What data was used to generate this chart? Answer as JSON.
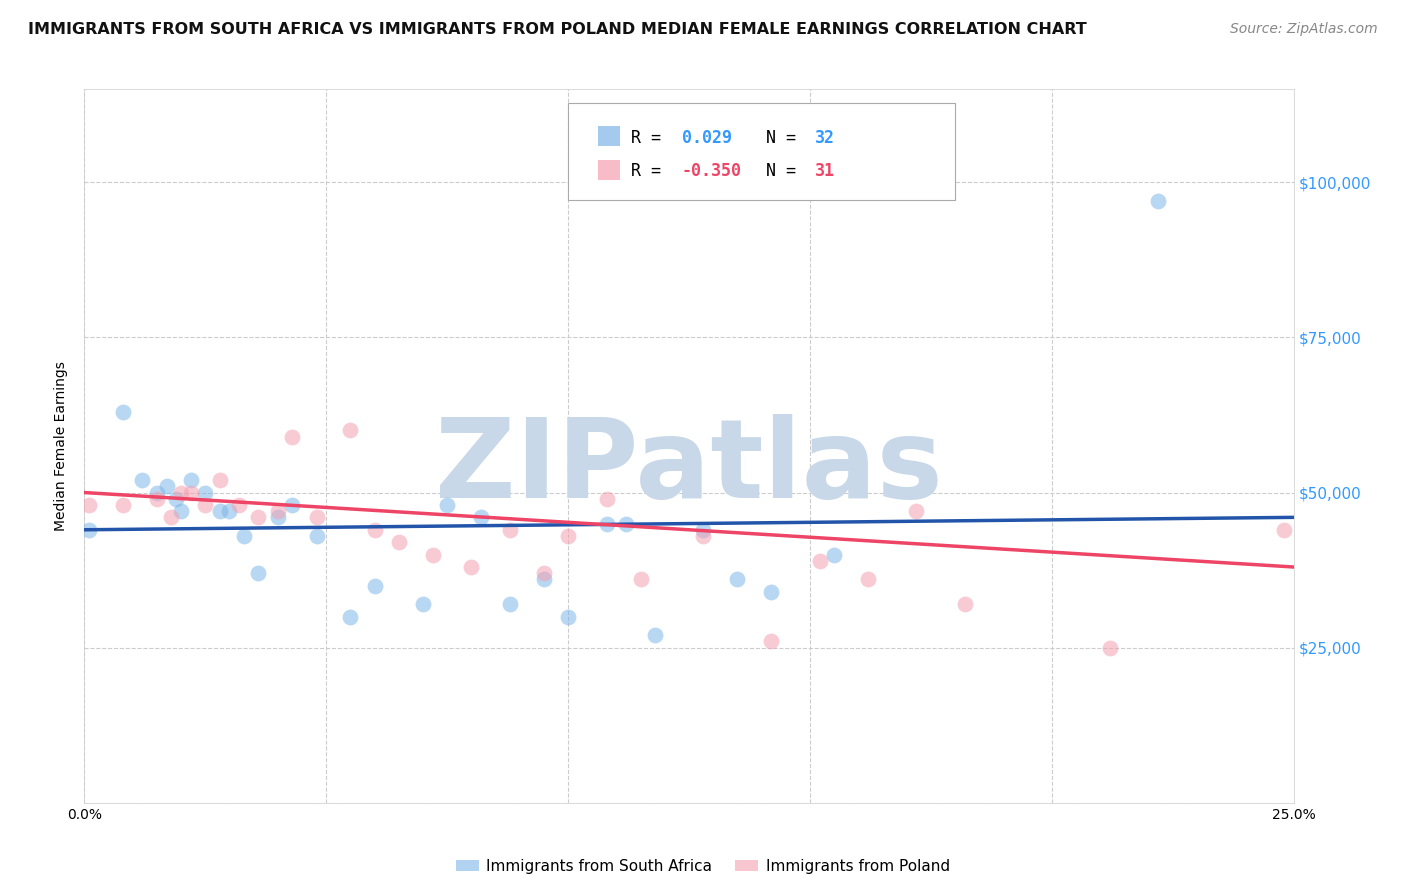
{
  "title": "IMMIGRANTS FROM SOUTH AFRICA VS IMMIGRANTS FROM POLAND MEDIAN FEMALE EARNINGS CORRELATION CHART",
  "source": "Source: ZipAtlas.com",
  "ylabel": "Median Female Earnings",
  "xlim": [
    0.0,
    0.25
  ],
  "ylim": [
    0,
    115000
  ],
  "yticks": [
    0,
    25000,
    50000,
    75000,
    100000
  ],
  "ytick_labels": [
    "",
    "$25,000",
    "$50,000",
    "$75,000",
    "$100,000"
  ],
  "xticks": [
    0.0,
    0.05,
    0.1,
    0.15,
    0.2,
    0.25
  ],
  "xtick_labels": [
    "0.0%",
    "",
    "",
    "",
    "",
    "25.0%"
  ],
  "background_color": "#ffffff",
  "grid_color": "#cccccc",
  "blue_color": "#7EB6E8",
  "pink_color": "#F4A0B0",
  "line_blue": "#2255AA",
  "line_pink": "#EE4466",
  "legend_r_blue": "0.029",
  "legend_n_blue": "32",
  "legend_r_pink": "-0.350",
  "legend_n_pink": "31",
  "watermark": "ZIPatlas",
  "watermark_color": "#C8D8E8",
  "blue_points_x": [
    0.001,
    0.008,
    0.012,
    0.015,
    0.017,
    0.019,
    0.02,
    0.022,
    0.025,
    0.028,
    0.03,
    0.033,
    0.036,
    0.04,
    0.043,
    0.048,
    0.055,
    0.06,
    0.07,
    0.075,
    0.082,
    0.088,
    0.095,
    0.1,
    0.108,
    0.112,
    0.118,
    0.128,
    0.135,
    0.142,
    0.155,
    0.222
  ],
  "blue_points_y": [
    44000,
    63000,
    52000,
    50000,
    51000,
    49000,
    47000,
    52000,
    50000,
    47000,
    47000,
    43000,
    37000,
    46000,
    48000,
    43000,
    30000,
    35000,
    32000,
    48000,
    46000,
    32000,
    36000,
    30000,
    45000,
    45000,
    27000,
    44000,
    36000,
    34000,
    40000,
    97000
  ],
  "pink_points_x": [
    0.001,
    0.008,
    0.015,
    0.018,
    0.02,
    0.022,
    0.025,
    0.028,
    0.032,
    0.036,
    0.04,
    0.043,
    0.048,
    0.055,
    0.06,
    0.065,
    0.072,
    0.08,
    0.088,
    0.095,
    0.1,
    0.108,
    0.115,
    0.128,
    0.142,
    0.152,
    0.162,
    0.172,
    0.182,
    0.212,
    0.248
  ],
  "pink_points_y": [
    48000,
    48000,
    49000,
    46000,
    50000,
    50000,
    48000,
    52000,
    48000,
    46000,
    47000,
    59000,
    46000,
    60000,
    44000,
    42000,
    40000,
    38000,
    44000,
    37000,
    43000,
    49000,
    36000,
    43000,
    26000,
    39000,
    36000,
    47000,
    32000,
    25000,
    44000
  ],
  "blue_dot_size": 130,
  "pink_dot_size": 130,
  "blue_alpha": 0.55,
  "pink_alpha": 0.55,
  "title_fontsize": 11.5,
  "axis_label_fontsize": 10,
  "tick_fontsize": 10,
  "legend_fontsize": 12,
  "source_fontsize": 10,
  "right_tick_color": "#3399FF",
  "legend_number_color_blue": "#3399FF",
  "legend_number_color_pink": "#EE4466"
}
